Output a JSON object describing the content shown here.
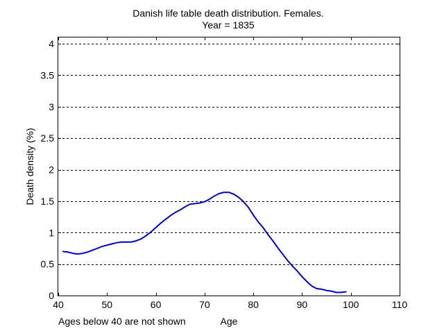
{
  "chart_data": {
    "type": "line",
    "title": "Danish life table death distribution. Females.",
    "subtitle": "Year = 1835",
    "xlabel": "Age",
    "ylabel": "Death density (%)",
    "annotation": "Ages below 40 are not shown",
    "xlim": [
      40,
      110
    ],
    "ylim": [
      0,
      4.1
    ],
    "xticks": [
      40,
      50,
      60,
      70,
      80,
      90,
      100,
      110
    ],
    "yticks": [
      0,
      0.5,
      1,
      1.5,
      2,
      2.5,
      3,
      3.5,
      4
    ],
    "ytick_labels": [
      "0",
      "0.5",
      "1",
      "1.5",
      "2",
      "2.5",
      "3",
      "3.5",
      "4"
    ],
    "grid": "y-dashed",
    "series": [
      {
        "color": "#0000cc",
        "x": [
          41,
          42,
          43,
          44,
          45,
          46,
          47,
          48,
          49,
          50,
          51,
          52,
          53,
          54,
          55,
          56,
          57,
          58,
          59,
          60,
          61,
          62,
          63,
          64,
          65,
          66,
          67,
          68,
          69,
          70,
          71,
          72,
          73,
          74,
          75,
          76,
          77,
          78,
          79,
          80,
          81,
          82,
          83,
          84,
          85,
          86,
          87,
          88,
          89,
          90,
          91,
          92,
          93,
          94,
          95,
          96,
          97,
          98,
          99
        ],
        "y": [
          0.7,
          0.69,
          0.67,
          0.66,
          0.67,
          0.69,
          0.72,
          0.75,
          0.78,
          0.8,
          0.82,
          0.84,
          0.85,
          0.85,
          0.85,
          0.87,
          0.9,
          0.95,
          1.01,
          1.08,
          1.15,
          1.21,
          1.27,
          1.32,
          1.36,
          1.41,
          1.45,
          1.46,
          1.47,
          1.49,
          1.53,
          1.58,
          1.62,
          1.64,
          1.64,
          1.61,
          1.56,
          1.49,
          1.4,
          1.28,
          1.17,
          1.08,
          0.97,
          0.87,
          0.76,
          0.66,
          0.56,
          0.47,
          0.39,
          0.3,
          0.22,
          0.15,
          0.11,
          0.1,
          0.08,
          0.07,
          0.05,
          0.05,
          0.06
        ]
      }
    ]
  }
}
